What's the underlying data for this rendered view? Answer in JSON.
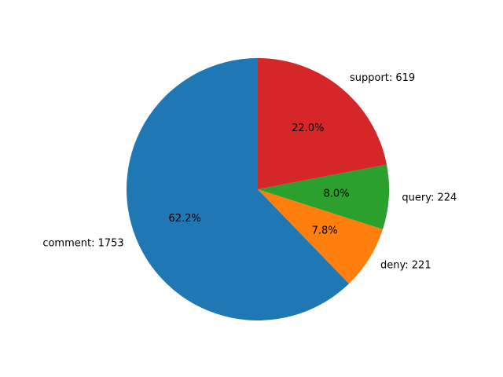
{
  "chart_data": {
    "type": "pie",
    "categories": [
      "comment",
      "deny",
      "query",
      "support"
    ],
    "values": [
      1753,
      221,
      224,
      619
    ],
    "slice_labels": [
      "comment: 1753",
      "deny: 221",
      "query: 224",
      "support: 619"
    ],
    "percent_labels": [
      "62.2%",
      "7.8%",
      "8.0%",
      "22.0%"
    ],
    "colors": [
      "#1f77b4",
      "#ff7f0e",
      "#2ca02c",
      "#d62728"
    ],
    "start_angle_deg": 90,
    "direction": "counterclockwise"
  }
}
